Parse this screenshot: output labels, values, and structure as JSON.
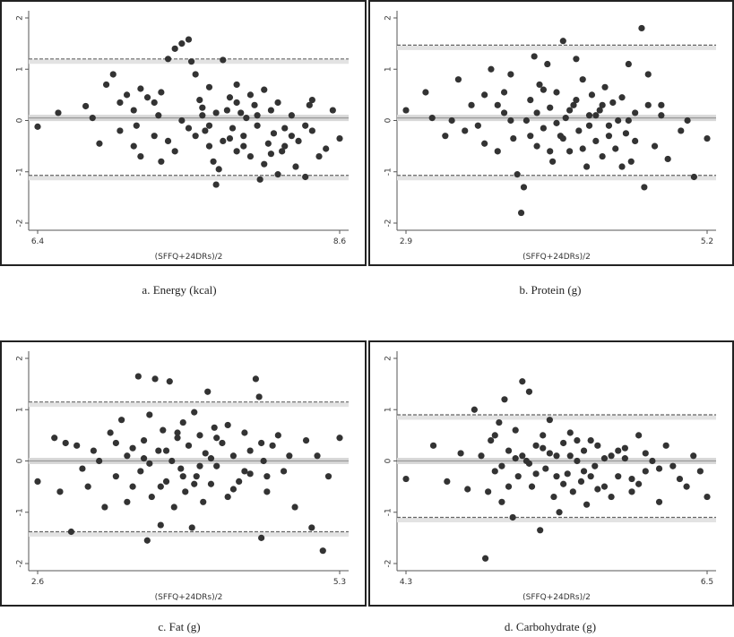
{
  "chart_data": [
    {
      "type": "scatter",
      "title": "",
      "caption": "a. Energy (kcal)",
      "xlabel": "(SFFQ+24DRs)/2",
      "ylabel": "",
      "xlim": [
        6.4,
        8.6
      ],
      "ylim": [
        -2,
        2
      ],
      "x_ticks": [
        "6.4",
        "8.6"
      ],
      "y_ticks": [
        "2",
        "1",
        "0",
        "-1",
        "-2"
      ],
      "mean_line": 0.05,
      "upper_loa": 1.2,
      "lower_loa": -1.07,
      "points": [
        [
          6.4,
          -0.12
        ],
        [
          6.55,
          0.15
        ],
        [
          6.75,
          0.28
        ],
        [
          6.8,
          0.05
        ],
        [
          6.9,
          0.7
        ],
        [
          6.95,
          0.9
        ],
        [
          7.0,
          0.35
        ],
        [
          7.05,
          0.5
        ],
        [
          7.1,
          0.2
        ],
        [
          7.12,
          -0.1
        ],
        [
          7.15,
          0.62
        ],
        [
          7.2,
          0.45
        ],
        [
          7.25,
          -0.3
        ],
        [
          7.28,
          0.1
        ],
        [
          7.3,
          0.55
        ],
        [
          7.35,
          1.2
        ],
        [
          7.4,
          1.4
        ],
        [
          7.45,
          1.5
        ],
        [
          7.5,
          1.58
        ],
        [
          7.52,
          1.15
        ],
        [
          7.55,
          0.9
        ],
        [
          7.58,
          0.4
        ],
        [
          7.6,
          0.1
        ],
        [
          7.62,
          -0.2
        ],
        [
          7.65,
          -0.5
        ],
        [
          7.68,
          -0.8
        ],
        [
          7.7,
          -1.25
        ],
        [
          7.72,
          -0.95
        ],
        [
          7.75,
          -0.4
        ],
        [
          7.78,
          0.2
        ],
        [
          7.8,
          0.45
        ],
        [
          7.82,
          -0.15
        ],
        [
          7.85,
          -0.6
        ],
        [
          7.88,
          0.15
        ],
        [
          7.9,
          -0.3
        ],
        [
          7.92,
          0.05
        ],
        [
          7.95,
          -0.7
        ],
        [
          7.98,
          0.3
        ],
        [
          8.0,
          -0.1
        ],
        [
          8.02,
          -1.15
        ],
        [
          8.05,
          0.6
        ],
        [
          8.08,
          -0.45
        ],
        [
          8.1,
          0.2
        ],
        [
          8.12,
          -0.25
        ],
        [
          8.15,
          0.35
        ],
        [
          8.18,
          -0.6
        ],
        [
          8.2,
          -0.15
        ],
        [
          8.25,
          0.1
        ],
        [
          8.28,
          -0.9
        ],
        [
          8.3,
          -0.4
        ],
        [
          8.35,
          -1.1
        ],
        [
          8.38,
          0.3
        ],
        [
          8.4,
          -0.2
        ],
        [
          8.45,
          -0.7
        ],
        [
          8.5,
          -0.55
        ],
        [
          8.55,
          0.2
        ],
        [
          8.6,
          -0.35
        ],
        [
          7.1,
          -0.5
        ],
        [
          7.3,
          -0.8
        ],
        [
          7.45,
          0.0
        ],
        [
          7.55,
          -0.3
        ],
        [
          7.65,
          0.65
        ],
        [
          7.75,
          1.18
        ],
        [
          7.85,
          0.7
        ],
        [
          7.95,
          0.5
        ],
        [
          8.05,
          -0.85
        ],
        [
          8.15,
          -1.05
        ],
        [
          8.25,
          -0.3
        ],
        [
          7.0,
          -0.2
        ],
        [
          7.4,
          -0.6
        ],
        [
          7.6,
          0.25
        ],
        [
          7.8,
          -0.35
        ],
        [
          8.0,
          0.1
        ],
        [
          8.2,
          -0.5
        ],
        [
          8.4,
          0.4
        ],
        [
          7.5,
          -0.15
        ],
        [
          7.7,
          0.15
        ],
        [
          7.9,
          -0.5
        ],
        [
          8.1,
          -0.65
        ],
        [
          7.25,
          0.35
        ],
        [
          7.35,
          -0.4
        ],
        [
          7.65,
          -0.1
        ],
        [
          7.85,
          0.35
        ],
        [
          8.35,
          -0.1
        ],
        [
          6.85,
          -0.45
        ],
        [
          7.15,
          -0.7
        ]
      ]
    },
    {
      "type": "scatter",
      "title": "",
      "caption": "b. Protein (g)",
      "xlabel": "(SFFQ+24DRs)/2",
      "ylabel": "",
      "xlim": [
        2.9,
        5.2
      ],
      "ylim": [
        -2,
        2
      ],
      "x_ticks": [
        "2.9",
        "5.2"
      ],
      "y_ticks": [
        "2",
        "1",
        "0",
        "-1",
        "-2"
      ],
      "mean_line": 0.05,
      "upper_loa": 1.47,
      "lower_loa": -1.07,
      "points": [
        [
          2.9,
          0.2
        ],
        [
          3.05,
          0.55
        ],
        [
          3.1,
          0.05
        ],
        [
          3.2,
          -0.3
        ],
        [
          3.3,
          0.8
        ],
        [
          3.4,
          0.3
        ],
        [
          3.45,
          -0.1
        ],
        [
          3.5,
          0.5
        ],
        [
          3.55,
          1.0
        ],
        [
          3.6,
          -0.6
        ],
        [
          3.65,
          0.15
        ],
        [
          3.7,
          0.9
        ],
        [
          3.72,
          -0.35
        ],
        [
          3.75,
          -1.05
        ],
        [
          3.78,
          -1.8
        ],
        [
          3.8,
          -1.3
        ],
        [
          3.82,
          0.0
        ],
        [
          3.85,
          0.4
        ],
        [
          3.88,
          1.25
        ],
        [
          3.9,
          -0.5
        ],
        [
          3.92,
          0.7
        ],
        [
          3.95,
          -0.15
        ],
        [
          3.98,
          1.1
        ],
        [
          4.0,
          0.25
        ],
        [
          4.02,
          -0.8
        ],
        [
          4.05,
          0.55
        ],
        [
          4.08,
          -0.3
        ],
        [
          4.1,
          1.55
        ],
        [
          4.12,
          0.05
        ],
        [
          4.15,
          -0.6
        ],
        [
          4.18,
          0.3
        ],
        [
          4.2,
          1.2
        ],
        [
          4.22,
          -0.2
        ],
        [
          4.25,
          0.8
        ],
        [
          4.28,
          -0.9
        ],
        [
          4.3,
          0.1
        ],
        [
          4.32,
          0.5
        ],
        [
          4.35,
          -0.4
        ],
        [
          4.38,
          0.2
        ],
        [
          4.4,
          -0.7
        ],
        [
          4.42,
          0.65
        ],
        [
          4.45,
          -0.1
        ],
        [
          4.48,
          0.35
        ],
        [
          4.5,
          -0.55
        ],
        [
          4.52,
          0.0
        ],
        [
          4.55,
          0.45
        ],
        [
          4.58,
          -0.25
        ],
        [
          4.6,
          1.1
        ],
        [
          4.62,
          -0.8
        ],
        [
          4.65,
          0.15
        ],
        [
          4.7,
          1.8
        ],
        [
          4.72,
          -1.3
        ],
        [
          4.75,
          0.3
        ],
        [
          4.8,
          -0.5
        ],
        [
          4.85,
          0.1
        ],
        [
          4.9,
          -0.75
        ],
        [
          5.0,
          -0.2
        ],
        [
          5.05,
          0.0
        ],
        [
          5.1,
          -1.1
        ],
        [
          5.2,
          -0.35
        ],
        [
          3.25,
          0.0
        ],
        [
          3.35,
          -0.2
        ],
        [
          3.6,
          0.3
        ],
        [
          3.7,
          0.0
        ],
        [
          3.85,
          -0.3
        ],
        [
          3.95,
          0.6
        ],
        [
          4.05,
          -0.05
        ],
        [
          4.15,
          0.2
        ],
        [
          4.25,
          -0.55
        ],
        [
          4.35,
          0.1
        ],
        [
          4.45,
          -0.3
        ],
        [
          4.55,
          -0.9
        ],
        [
          4.65,
          -0.4
        ],
        [
          4.75,
          0.9
        ],
        [
          4.85,
          0.3
        ],
        [
          3.5,
          -0.45
        ],
        [
          3.65,
          0.55
        ],
        [
          4.0,
          -0.6
        ],
        [
          4.2,
          0.4
        ],
        [
          4.4,
          0.3
        ],
        [
          4.6,
          0.0
        ],
        [
          4.3,
          -0.1
        ],
        [
          3.9,
          0.15
        ],
        [
          4.1,
          -0.35
        ]
      ]
    },
    {
      "type": "scatter",
      "title": "",
      "caption": "c. Fat (g)",
      "xlabel": "(SFFQ+24DRs)/2",
      "ylabel": "",
      "xlim": [
        2.6,
        5.3
      ],
      "ylim": [
        -2,
        2
      ],
      "x_ticks": [
        "2.6",
        "5.3"
      ],
      "y_ticks": [
        "2",
        "1",
        "0",
        "-1",
        "-2"
      ],
      "mean_line": 0.0,
      "upper_loa": 1.15,
      "lower_loa": -1.38,
      "points": [
        [
          2.6,
          -0.4
        ],
        [
          2.75,
          0.45
        ],
        [
          2.8,
          -0.6
        ],
        [
          2.85,
          0.35
        ],
        [
          2.9,
          -1.38
        ],
        [
          3.0,
          -0.15
        ],
        [
          3.1,
          0.2
        ],
        [
          3.2,
          -0.9
        ],
        [
          3.25,
          0.55
        ],
        [
          3.3,
          -0.3
        ],
        [
          3.35,
          0.8
        ],
        [
          3.4,
          0.1
        ],
        [
          3.45,
          -0.5
        ],
        [
          3.5,
          1.65
        ],
        [
          3.52,
          -0.2
        ],
        [
          3.55,
          0.4
        ],
        [
          3.58,
          -1.55
        ],
        [
          3.6,
          0.9
        ],
        [
          3.62,
          -0.7
        ],
        [
          3.65,
          1.6
        ],
        [
          3.68,
          0.2
        ],
        [
          3.7,
          -1.25
        ],
        [
          3.72,
          0.6
        ],
        [
          3.75,
          -0.4
        ],
        [
          3.78,
          1.55
        ],
        [
          3.8,
          0.0
        ],
        [
          3.82,
          -0.9
        ],
        [
          3.85,
          0.45
        ],
        [
          3.88,
          -0.15
        ],
        [
          3.9,
          0.75
        ],
        [
          3.92,
          -0.6
        ],
        [
          3.95,
          0.3
        ],
        [
          3.98,
          -1.3
        ],
        [
          4.0,
          0.95
        ],
        [
          4.02,
          -0.3
        ],
        [
          4.05,
          0.5
        ],
        [
          4.08,
          -0.8
        ],
        [
          4.1,
          0.15
        ],
        [
          4.12,
          1.35
        ],
        [
          4.15,
          -0.45
        ],
        [
          4.18,
          0.65
        ],
        [
          4.2,
          -0.1
        ],
        [
          4.25,
          0.35
        ],
        [
          4.3,
          -0.7
        ],
        [
          4.35,
          0.1
        ],
        [
          4.4,
          -0.4
        ],
        [
          4.45,
          0.55
        ],
        [
          4.5,
          -0.25
        ],
        [
          4.55,
          1.6
        ],
        [
          4.58,
          1.25
        ],
        [
          4.6,
          -1.5
        ],
        [
          4.62,
          0.0
        ],
        [
          4.65,
          -0.6
        ],
        [
          4.7,
          0.3
        ],
        [
          4.8,
          -0.2
        ],
        [
          4.9,
          -0.9
        ],
        [
          5.0,
          0.4
        ],
        [
          5.05,
          -1.3
        ],
        [
          5.1,
          0.1
        ],
        [
          5.15,
          -1.75
        ],
        [
          5.2,
          -0.3
        ],
        [
          5.3,
          0.45
        ],
        [
          3.15,
          0.0
        ],
        [
          3.3,
          0.35
        ],
        [
          3.45,
          0.25
        ],
        [
          3.6,
          -0.05
        ],
        [
          3.75,
          0.2
        ],
        [
          3.9,
          -0.3
        ],
        [
          4.05,
          -0.1
        ],
        [
          4.2,
          0.45
        ],
        [
          4.35,
          -0.55
        ],
        [
          4.5,
          0.2
        ],
        [
          4.65,
          -0.3
        ],
        [
          4.75,
          0.5
        ],
        [
          4.85,
          0.1
        ],
        [
          3.4,
          -0.8
        ],
        [
          3.55,
          0.05
        ],
        [
          3.7,
          -0.5
        ],
        [
          3.85,
          0.55
        ],
        [
          4.0,
          -0.45
        ],
        [
          4.15,
          0.05
        ],
        [
          4.3,
          0.7
        ],
        [
          4.45,
          -0.2
        ],
        [
          4.6,
          0.35
        ],
        [
          2.95,
          0.3
        ],
        [
          3.05,
          -0.5
        ]
      ]
    },
    {
      "type": "scatter",
      "title": "",
      "caption": "d. Carbohydrate (g)",
      "xlabel": "(SFFQ+24DRs)/2",
      "ylabel": "",
      "xlim": [
        4.3,
        6.5
      ],
      "ylim": [
        -2,
        2
      ],
      "x_ticks": [
        "4.3",
        "6.5"
      ],
      "y_ticks": [
        "2",
        "1",
        "0",
        "-1",
        "-2"
      ],
      "mean_line": 0.0,
      "upper_loa": 0.9,
      "lower_loa": -1.1,
      "points": [
        [
          4.3,
          -0.35
        ],
        [
          4.5,
          0.3
        ],
        [
          4.6,
          -0.4
        ],
        [
          4.7,
          0.15
        ],
        [
          4.75,
          -0.55
        ],
        [
          4.8,
          1.0
        ],
        [
          4.85,
          0.1
        ],
        [
          4.88,
          -1.9
        ],
        [
          4.9,
          -0.6
        ],
        [
          4.92,
          0.4
        ],
        [
          4.95,
          -0.2
        ],
        [
          4.98,
          0.75
        ],
        [
          5.0,
          -0.8
        ],
        [
          5.02,
          1.2
        ],
        [
          5.05,
          0.2
        ],
        [
          5.08,
          -1.1
        ],
        [
          5.1,
          0.6
        ],
        [
          5.12,
          -0.3
        ],
        [
          5.15,
          1.55
        ],
        [
          5.18,
          0.0
        ],
        [
          5.2,
          1.35
        ],
        [
          5.22,
          -0.5
        ],
        [
          5.25,
          0.3
        ],
        [
          5.28,
          -1.35
        ],
        [
          5.3,
          0.5
        ],
        [
          5.32,
          -0.15
        ],
        [
          5.35,
          0.8
        ],
        [
          5.38,
          -0.7
        ],
        [
          5.4,
          0.1
        ],
        [
          5.42,
          -1.0
        ],
        [
          5.45,
          0.35
        ],
        [
          5.48,
          -0.25
        ],
        [
          5.5,
          0.55
        ],
        [
          5.52,
          -0.6
        ],
        [
          5.55,
          0.0
        ],
        [
          5.58,
          -0.4
        ],
        [
          5.6,
          0.2
        ],
        [
          5.62,
          -0.85
        ],
        [
          5.65,
          0.4
        ],
        [
          5.68,
          -0.1
        ],
        [
          5.7,
          0.3
        ],
        [
          5.75,
          -0.5
        ],
        [
          5.8,
          0.1
        ],
        [
          5.85,
          -0.3
        ],
        [
          5.9,
          0.25
        ],
        [
          5.95,
          -0.6
        ],
        [
          6.0,
          0.5
        ],
        [
          6.05,
          -0.2
        ],
        [
          6.1,
          0.0
        ],
        [
          6.15,
          -0.8
        ],
        [
          6.2,
          0.3
        ],
        [
          6.25,
          -0.1
        ],
        [
          6.3,
          -0.35
        ],
        [
          6.35,
          -0.5
        ],
        [
          6.4,
          0.1
        ],
        [
          6.45,
          -0.2
        ],
        [
          6.5,
          -0.7
        ],
        [
          5.05,
          -0.5
        ],
        [
          5.15,
          0.1
        ],
        [
          5.25,
          -0.25
        ],
        [
          5.35,
          0.15
        ],
        [
          5.45,
          -0.45
        ],
        [
          5.55,
          0.4
        ],
        [
          5.65,
          -0.3
        ],
        [
          5.75,
          0.05
        ],
        [
          5.85,
          0.2
        ],
        [
          5.95,
          -0.35
        ],
        [
          6.05,
          0.15
        ],
        [
          6.15,
          -0.15
        ],
        [
          5.1,
          0.05
        ],
        [
          5.2,
          -0.05
        ],
        [
          5.3,
          0.25
        ],
        [
          5.4,
          -0.3
        ],
        [
          5.5,
          0.1
        ],
        [
          5.6,
          -0.2
        ],
        [
          5.7,
          -0.55
        ],
        [
          5.8,
          -0.7
        ],
        [
          5.9,
          0.05
        ],
        [
          6.0,
          -0.45
        ],
        [
          4.95,
          0.5
        ],
        [
          5.0,
          -0.1
        ]
      ]
    }
  ]
}
